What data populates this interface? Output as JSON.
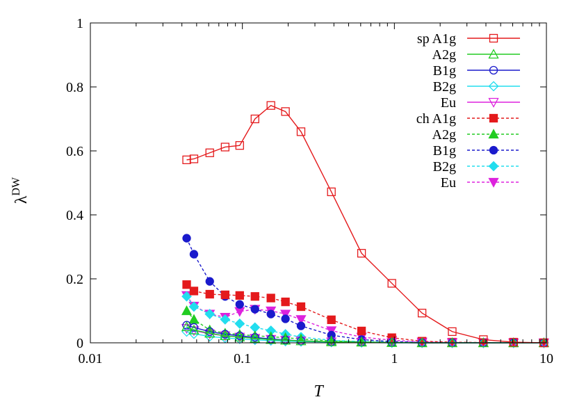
{
  "chart_data": {
    "type": "line",
    "xlabel": "T",
    "ylabel": "λ",
    "ylabel_sup": "DW",
    "xscale": "log",
    "xlim": [
      0.01,
      10
    ],
    "ylim": [
      0,
      1
    ],
    "x_ticks": [
      0.01,
      0.1,
      1,
      10
    ],
    "x_tick_labels": [
      "0.01",
      "0.1",
      "1",
      "10"
    ],
    "y_ticks": [
      0,
      0.2,
      0.4,
      0.6,
      0.8,
      1
    ],
    "y_tick_labels": [
      "0",
      "0.2",
      "0.4",
      "0.6",
      "0.8",
      "1"
    ],
    "grid": false,
    "legend_position": "top-right",
    "series": [
      {
        "name": "sp A1g",
        "color": "#e41a1c",
        "marker": "square-open",
        "dash": "solid",
        "x": [
          0.043,
          0.048,
          0.061,
          0.077,
          0.096,
          0.121,
          0.154,
          0.192,
          0.243,
          0.385,
          0.608,
          0.962,
          1.52,
          2.4,
          3.85,
          6.08,
          9.62
        ],
        "y": [
          0.572,
          0.575,
          0.594,
          0.612,
          0.617,
          0.7,
          0.742,
          0.723,
          0.66,
          0.472,
          0.28,
          0.186,
          0.093,
          0.035,
          0.01,
          0.002,
          0.0
        ]
      },
      {
        "name": "A2g",
        "color": "#22cc22",
        "marker": "triangle-up-open",
        "dash": "solid",
        "x": [
          0.043,
          0.048,
          0.061,
          0.077,
          0.096,
          0.121,
          0.154,
          0.192,
          0.243,
          0.385,
          0.608,
          0.962,
          1.52,
          2.4,
          3.85,
          6.08,
          9.62
        ],
        "y": [
          0.05,
          0.04,
          0.03,
          0.022,
          0.018,
          0.014,
          0.01,
          0.008,
          0.006,
          0.003,
          0.002,
          0.001,
          0.0,
          0.0,
          0.0,
          0.0,
          0.0
        ]
      },
      {
        "name": "B1g",
        "color": "#1a1acc",
        "marker": "circle-open",
        "dash": "solid",
        "x": [
          0.043,
          0.048,
          0.061,
          0.077,
          0.096,
          0.121,
          0.154,
          0.192,
          0.243,
          0.385,
          0.608,
          0.962,
          1.52,
          2.4,
          3.85,
          6.08,
          9.62
        ],
        "y": [
          0.055,
          0.048,
          0.035,
          0.027,
          0.022,
          0.017,
          0.012,
          0.009,
          0.006,
          0.003,
          0.002,
          0.001,
          0.0,
          0.0,
          0.0,
          0.0,
          0.0
        ]
      },
      {
        "name": "B2g",
        "color": "#22ddee",
        "marker": "diamond-open",
        "dash": "solid",
        "x": [
          0.043,
          0.048,
          0.061,
          0.077,
          0.096,
          0.121,
          0.154,
          0.192,
          0.243,
          0.385,
          0.608,
          0.962,
          1.52,
          2.4,
          3.85,
          6.08,
          9.62
        ],
        "y": [
          0.035,
          0.028,
          0.02,
          0.015,
          0.012,
          0.009,
          0.007,
          0.005,
          0.004,
          0.002,
          0.001,
          0.0,
          0.0,
          0.0,
          0.0,
          0.0,
          0.0
        ]
      },
      {
        "name": "Eu",
        "color": "#dd22dd",
        "marker": "triangle-down-open",
        "dash": "solid",
        "x": [
          0.043,
          0.048,
          0.061,
          0.077,
          0.096,
          0.121,
          0.154,
          0.192,
          0.243,
          0.385,
          0.608,
          0.962,
          1.52,
          2.4,
          3.85,
          6.08,
          9.62
        ],
        "y": [
          0.045,
          0.038,
          0.028,
          0.022,
          0.018,
          0.014,
          0.011,
          0.008,
          0.006,
          0.003,
          0.002,
          0.001,
          0.0,
          0.0,
          0.0,
          0.0,
          0.0
        ]
      },
      {
        "name": "ch A1g",
        "color": "#e41a1c",
        "marker": "square-filled",
        "dash": "dashed",
        "x": [
          0.043,
          0.048,
          0.061,
          0.077,
          0.096,
          0.121,
          0.154,
          0.192,
          0.243,
          0.385,
          0.608,
          0.962,
          1.52,
          2.4,
          3.85,
          6.08,
          9.62
        ],
        "y": [
          0.182,
          0.162,
          0.152,
          0.15,
          0.148,
          0.145,
          0.14,
          0.128,
          0.113,
          0.072,
          0.037,
          0.016,
          0.005,
          0.002,
          0.001,
          0.0,
          0.0
        ]
      },
      {
        "name": "A2g",
        "color": "#22cc22",
        "marker": "triangle-up-filled",
        "dash": "dashed",
        "x": [
          0.043,
          0.048,
          0.061,
          0.077,
          0.096,
          0.121,
          0.154,
          0.192,
          0.243,
          0.385,
          0.608,
          0.962,
          1.52,
          2.4,
          3.85,
          6.08,
          9.62
        ],
        "y": [
          0.1,
          0.073,
          0.04,
          0.03,
          0.026,
          0.022,
          0.019,
          0.016,
          0.012,
          0.006,
          0.003,
          0.001,
          0.0,
          0.0,
          0.0,
          0.0,
          0.0
        ]
      },
      {
        "name": "B1g",
        "color": "#1a1acc",
        "marker": "circle-filled",
        "dash": "dashed",
        "x": [
          0.043,
          0.048,
          0.061,
          0.077,
          0.096,
          0.121,
          0.154,
          0.192,
          0.243,
          0.385,
          0.608,
          0.962,
          1.52,
          2.4,
          3.85,
          6.08,
          9.62
        ],
        "y": [
          0.327,
          0.277,
          0.192,
          0.145,
          0.12,
          0.105,
          0.09,
          0.075,
          0.053,
          0.024,
          0.01,
          0.004,
          0.001,
          0.0,
          0.0,
          0.0,
          0.0
        ]
      },
      {
        "name": "B2g",
        "color": "#22ddee",
        "marker": "diamond-filled",
        "dash": "dashed",
        "x": [
          0.043,
          0.048,
          0.061,
          0.077,
          0.096,
          0.121,
          0.154,
          0.192,
          0.243,
          0.385,
          0.608,
          0.962,
          1.52,
          2.4,
          3.85,
          6.08,
          9.62
        ],
        "y": [
          0.145,
          0.113,
          0.09,
          0.073,
          0.06,
          0.048,
          0.038,
          0.027,
          0.018,
          0.008,
          0.004,
          0.002,
          0.001,
          0.0,
          0.0,
          0.0,
          0.0
        ]
      },
      {
        "name": "Eu",
        "color": "#dd22dd",
        "marker": "triangle-down-filled",
        "dash": "dashed",
        "x": [
          0.043,
          0.048,
          0.061,
          0.077,
          0.096,
          0.121,
          0.154,
          0.192,
          0.243,
          0.385,
          0.608,
          0.962,
          1.52,
          2.4,
          3.85,
          6.08,
          9.62
        ],
        "y": [
          0.148,
          0.115,
          0.09,
          0.08,
          0.098,
          0.105,
          0.1,
          0.09,
          0.073,
          0.038,
          0.018,
          0.008,
          0.003,
          0.001,
          0.0,
          0.0,
          0.0
        ]
      }
    ]
  }
}
